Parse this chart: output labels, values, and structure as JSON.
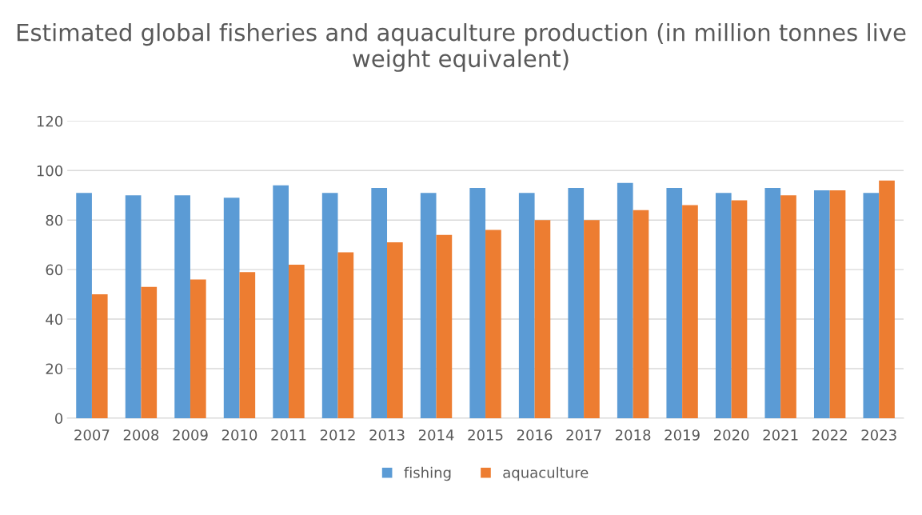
{
  "chart_data": {
    "type": "bar",
    "title": "Estimated global fisheries and aquaculture production (in million tonnes live weight equivalent)",
    "categories": [
      "2007",
      "2008",
      "2009",
      "2010",
      "2011",
      "2012",
      "2013",
      "2014",
      "2015",
      "2016",
      "2017",
      "2018",
      "2019",
      "2020",
      "2021",
      "2022",
      "2023"
    ],
    "series": [
      {
        "name": "fishing",
        "color": "#5b9bd5",
        "values": [
          91,
          90,
          90,
          89,
          94,
          91,
          93,
          91,
          93,
          91,
          93,
          95,
          93,
          91,
          93,
          92,
          91
        ]
      },
      {
        "name": "aquaculture",
        "color": "#ed7d31",
        "values": [
          50,
          53,
          56,
          59,
          62,
          67,
          71,
          74,
          76,
          80,
          80,
          84,
          86,
          88,
          90,
          92,
          96
        ]
      }
    ],
    "ylim": [
      0,
      120
    ],
    "yticks": [
      0,
      20,
      40,
      60,
      80,
      100,
      120
    ],
    "grid": "y",
    "legend": "bottom"
  }
}
